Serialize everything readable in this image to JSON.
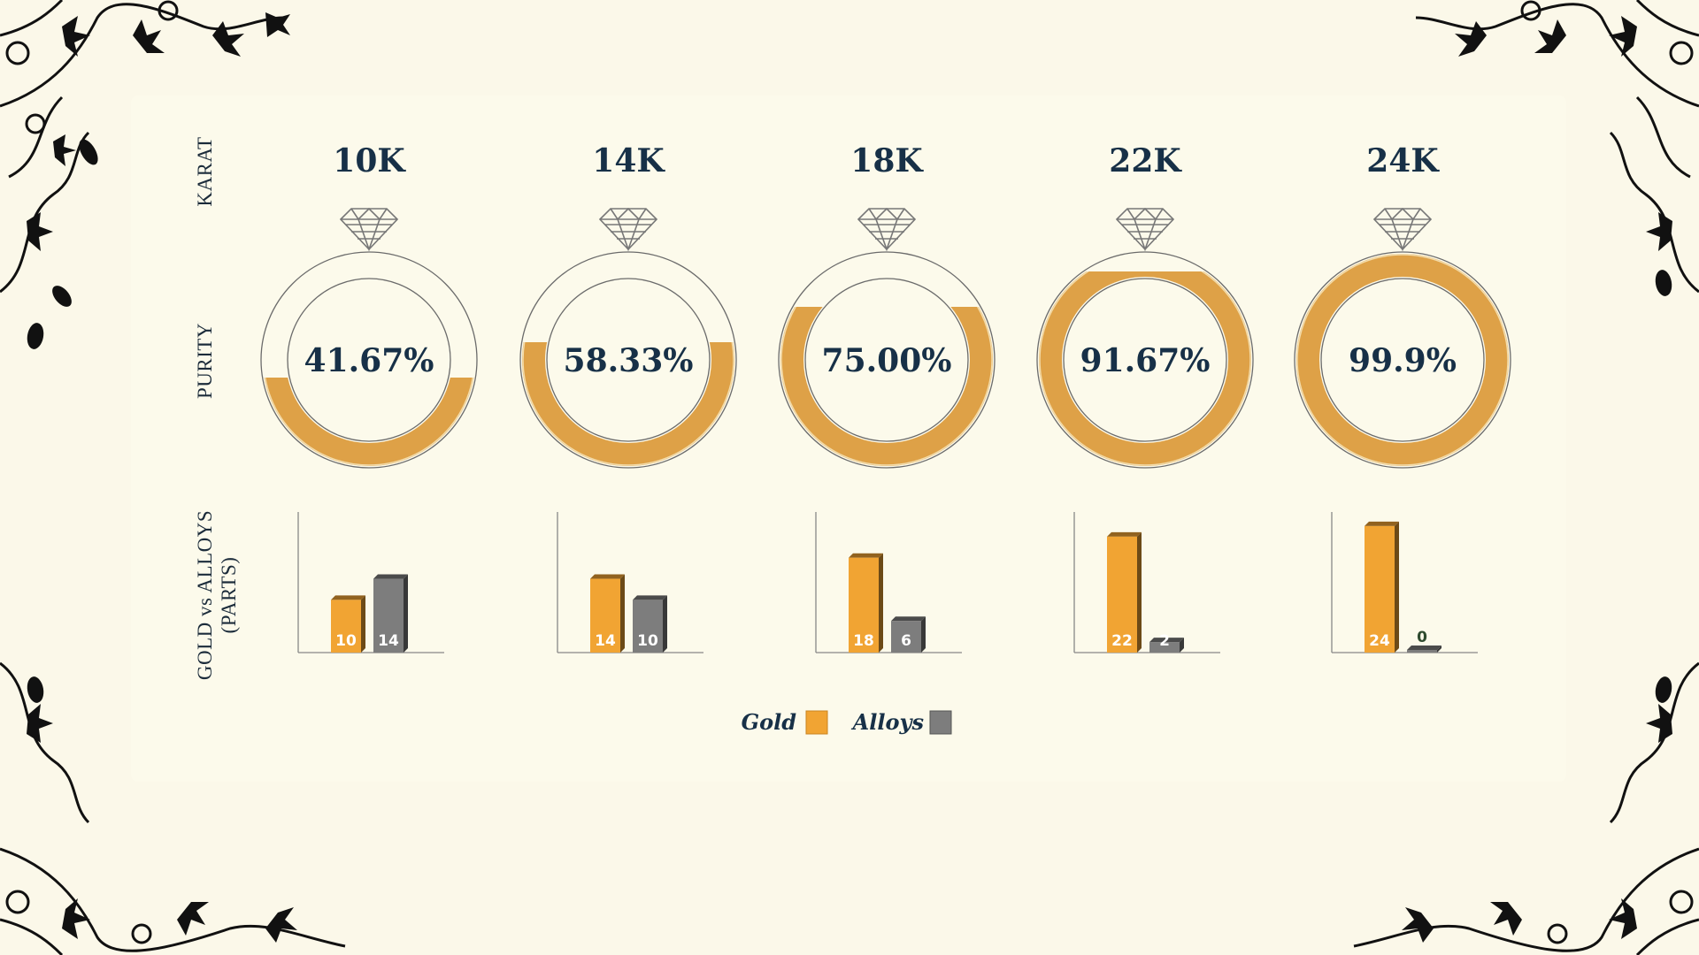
{
  "row_labels": {
    "karat": "KARAT",
    "purity": "PURITY",
    "parts_line1": "GOLD vs ALLOYS",
    "parts_line2": "(PARTS)"
  },
  "colors": {
    "gold": "#f1a433",
    "ring_gold": "#dea147",
    "alloy": "#7d7d7d",
    "text": "#173047",
    "background": "#fbf8e9"
  },
  "icons": [
    "diamond-icon",
    "floral-ornament-icon"
  ],
  "chart_data": [
    {
      "type": "donut",
      "categories": [
        "10K",
        "14K",
        "18K",
        "22K",
        "24K"
      ],
      "values": [
        41.67,
        58.33,
        75.0,
        91.67,
        99.9
      ],
      "labels": [
        "41.67%",
        "58.33%",
        "75.00%",
        "91.67%",
        "99.9%"
      ],
      "ylim": [
        0,
        100
      ]
    },
    {
      "type": "bar",
      "categories": [
        "10K",
        "14K",
        "18K",
        "22K",
        "24K"
      ],
      "series": [
        {
          "name": "Gold",
          "values": [
            10,
            14,
            18,
            22,
            24
          ],
          "color": "#f1a433"
        },
        {
          "name": "Alloys",
          "values": [
            14,
            10,
            6,
            2,
            0
          ],
          "color": "#7d7d7d"
        }
      ],
      "ylim": [
        0,
        26
      ],
      "legend": "bottom-center"
    }
  ]
}
